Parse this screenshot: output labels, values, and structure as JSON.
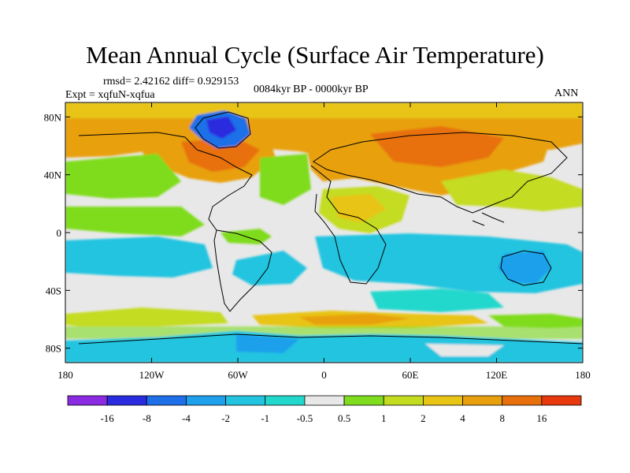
{
  "title": "Mean Annual Cycle (Surface Air Temperature)",
  "stats": "rmsd= 2.42162 diff= 0.929153",
  "experiment": "Expt = xqfuN-xqfua",
  "period": "0084kyr BP - 0000kyr BP",
  "season": "ANN",
  "axes": {
    "x_ticks": [
      "180",
      "120W",
      "60W",
      "0",
      "60E",
      "120E",
      "180"
    ],
    "y_ticks": [
      "80N",
      "40N",
      "0",
      "40S",
      "80S"
    ]
  },
  "legend": {
    "colors": [
      "#8a2be2",
      "#2a2adf",
      "#1e6fe8",
      "#1fa0ec",
      "#23c4e0",
      "#22d8cc",
      "#e8e8e8",
      "#7fdc1e",
      "#c4dc20",
      "#e8c414",
      "#e8a00e",
      "#e8700c",
      "#e8380e"
    ],
    "labels": [
      "-16",
      "-8",
      "-4",
      "-2",
      "-1",
      "-0.5",
      "0.5",
      "1",
      "2",
      "4",
      "8",
      "16"
    ]
  },
  "palette": {
    "ocean_neutral": "#e8e8e8",
    "coast": "#000000"
  }
}
